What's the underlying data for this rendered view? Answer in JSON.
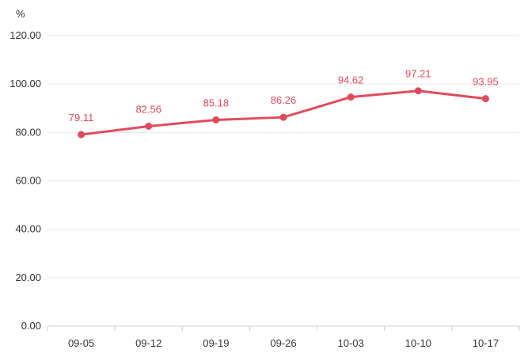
{
  "chart_data": {
    "type": "line",
    "ylabel": "%",
    "categories": [
      "09-05",
      "09-12",
      "09-19",
      "09-26",
      "10-03",
      "10-10",
      "10-17"
    ],
    "series": [
      {
        "values": [
          79.11,
          82.56,
          85.18,
          86.26,
          94.62,
          97.21,
          93.95
        ]
      }
    ],
    "data_labels": [
      "79.11",
      "82.56",
      "85.18",
      "86.26",
      "94.62",
      "97.21",
      "93.95"
    ],
    "yticks": [
      "0.00",
      "20.00",
      "40.00",
      "60.00",
      "80.00",
      "100.00",
      "120.00"
    ],
    "ylim": [
      0,
      120
    ],
    "grid": true,
    "colors": {
      "series": "#e04b5c",
      "grid": "#e6e6e6",
      "axis": "#cccccc",
      "text": "#333333"
    }
  }
}
